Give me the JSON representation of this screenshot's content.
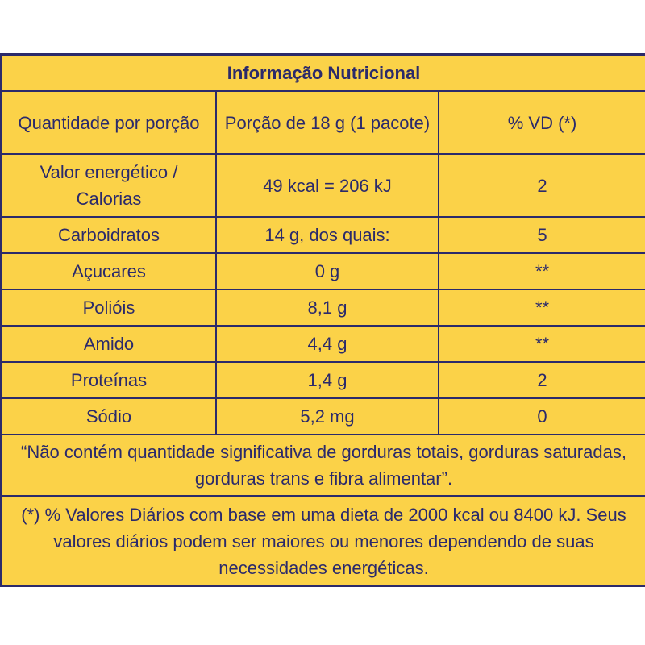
{
  "title": "Informação Nutricional",
  "header": {
    "col1": "Quantidade por porção",
    "col2": "Porção de 18 g (1 pacote)",
    "col3": "% VD (*)"
  },
  "rows": [
    {
      "nutrient": "Valor energético / Calorias",
      "amount": "49 kcal = 206 kJ",
      "vd": "2"
    },
    {
      "nutrient": "Carboidratos",
      "amount": "14 g, dos quais:",
      "vd": "5"
    },
    {
      "nutrient": "Açucares",
      "amount": "0 g",
      "vd": "**"
    },
    {
      "nutrient": "Polióis",
      "amount": "8,1 g",
      "vd": "**"
    },
    {
      "nutrient": "Amido",
      "amount": "4,4 g",
      "vd": "**"
    },
    {
      "nutrient": "Proteínas",
      "amount": "1,4 g",
      "vd": "2"
    },
    {
      "nutrient": "Sódio",
      "amount": "5,2 mg",
      "vd": "0"
    }
  ],
  "note_fats": "“Não contém quantidade significativa de gorduras totais, gorduras saturadas, gorduras trans e fibra alimentar”.",
  "note_vd": "(*) % Valores Diários com base em uma dieta de 2000 kcal ou 8400 kJ. Seus valores diários podem ser maiores ou menores dependendo de suas necessidades energéticas.",
  "colors": {
    "background": "#fbd248",
    "text": "#2b2a6b",
    "border": "#2b2a6b"
  }
}
